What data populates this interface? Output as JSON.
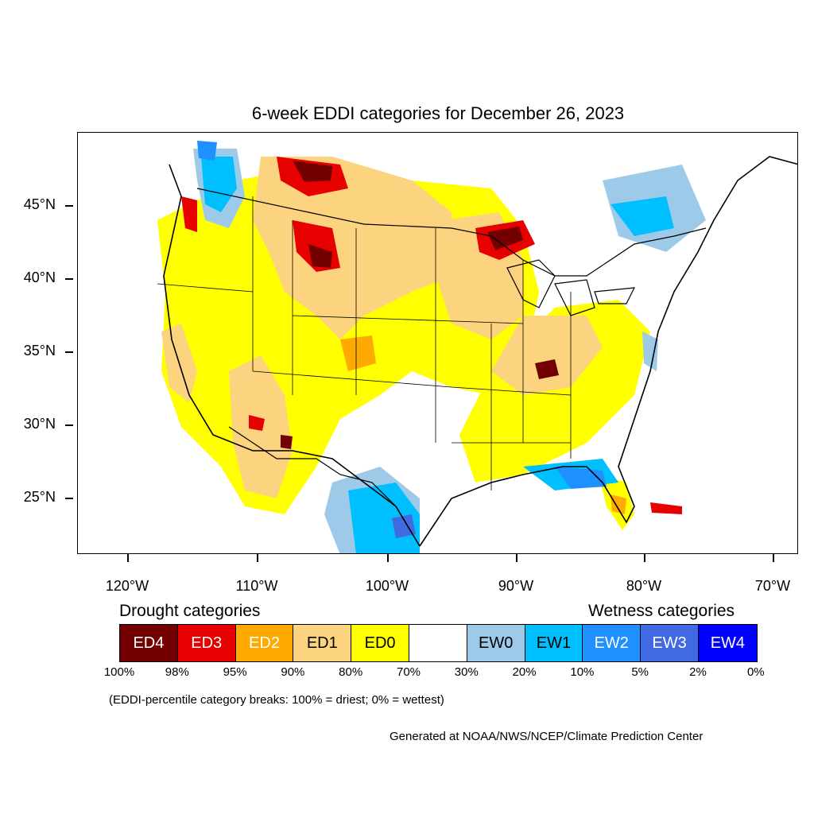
{
  "title": "6-week EDDI categories for December 26, 2023",
  "lat_labels": [
    "45°N",
    "40°N",
    "35°N",
    "30°N",
    "25°N"
  ],
  "lon_labels": [
    "120°W",
    "110°W",
    "100°W",
    "90°W",
    "80°W",
    "70°W"
  ],
  "legend": {
    "drought_heading": "Drought categories",
    "wetness_heading": "Wetness categories",
    "categories": [
      {
        "label": "ED4",
        "color": "#730000",
        "text_color": "#ffffff"
      },
      {
        "label": "ED3",
        "color": "#e60000",
        "text_color": "#ffffff"
      },
      {
        "label": "ED2",
        "color": "#ffaa00",
        "text_color": "#ffffff"
      },
      {
        "label": "ED1",
        "color": "#fcd37f",
        "text_color": "#000000"
      },
      {
        "label": "ED0",
        "color": "#ffff00",
        "text_color": "#000000"
      },
      {
        "label": "",
        "color": "#ffffff",
        "text_color": "#000000"
      },
      {
        "label": "EW0",
        "color": "#9ecae9",
        "text_color": "#000000"
      },
      {
        "label": "EW1",
        "color": "#00bfff",
        "text_color": "#000000"
      },
      {
        "label": "EW2",
        "color": "#1e90ff",
        "text_color": "#ffffff"
      },
      {
        "label": "EW3",
        "color": "#4169e1",
        "text_color": "#ffffff"
      },
      {
        "label": "EW4",
        "color": "#0000ff",
        "text_color": "#ffffff"
      }
    ],
    "percent_breaks": [
      "100%",
      "98%",
      "95%",
      "90%",
      "80%",
      "70%",
      "30%",
      "20%",
      "10%",
      "5%",
      "2%",
      "0%"
    ]
  },
  "note": "(EDDI-percentile category breaks: 100% = driest; 0% = wettest)",
  "credit": "Generated at NOAA/NWS/NCEP/Climate Prediction Center"
}
